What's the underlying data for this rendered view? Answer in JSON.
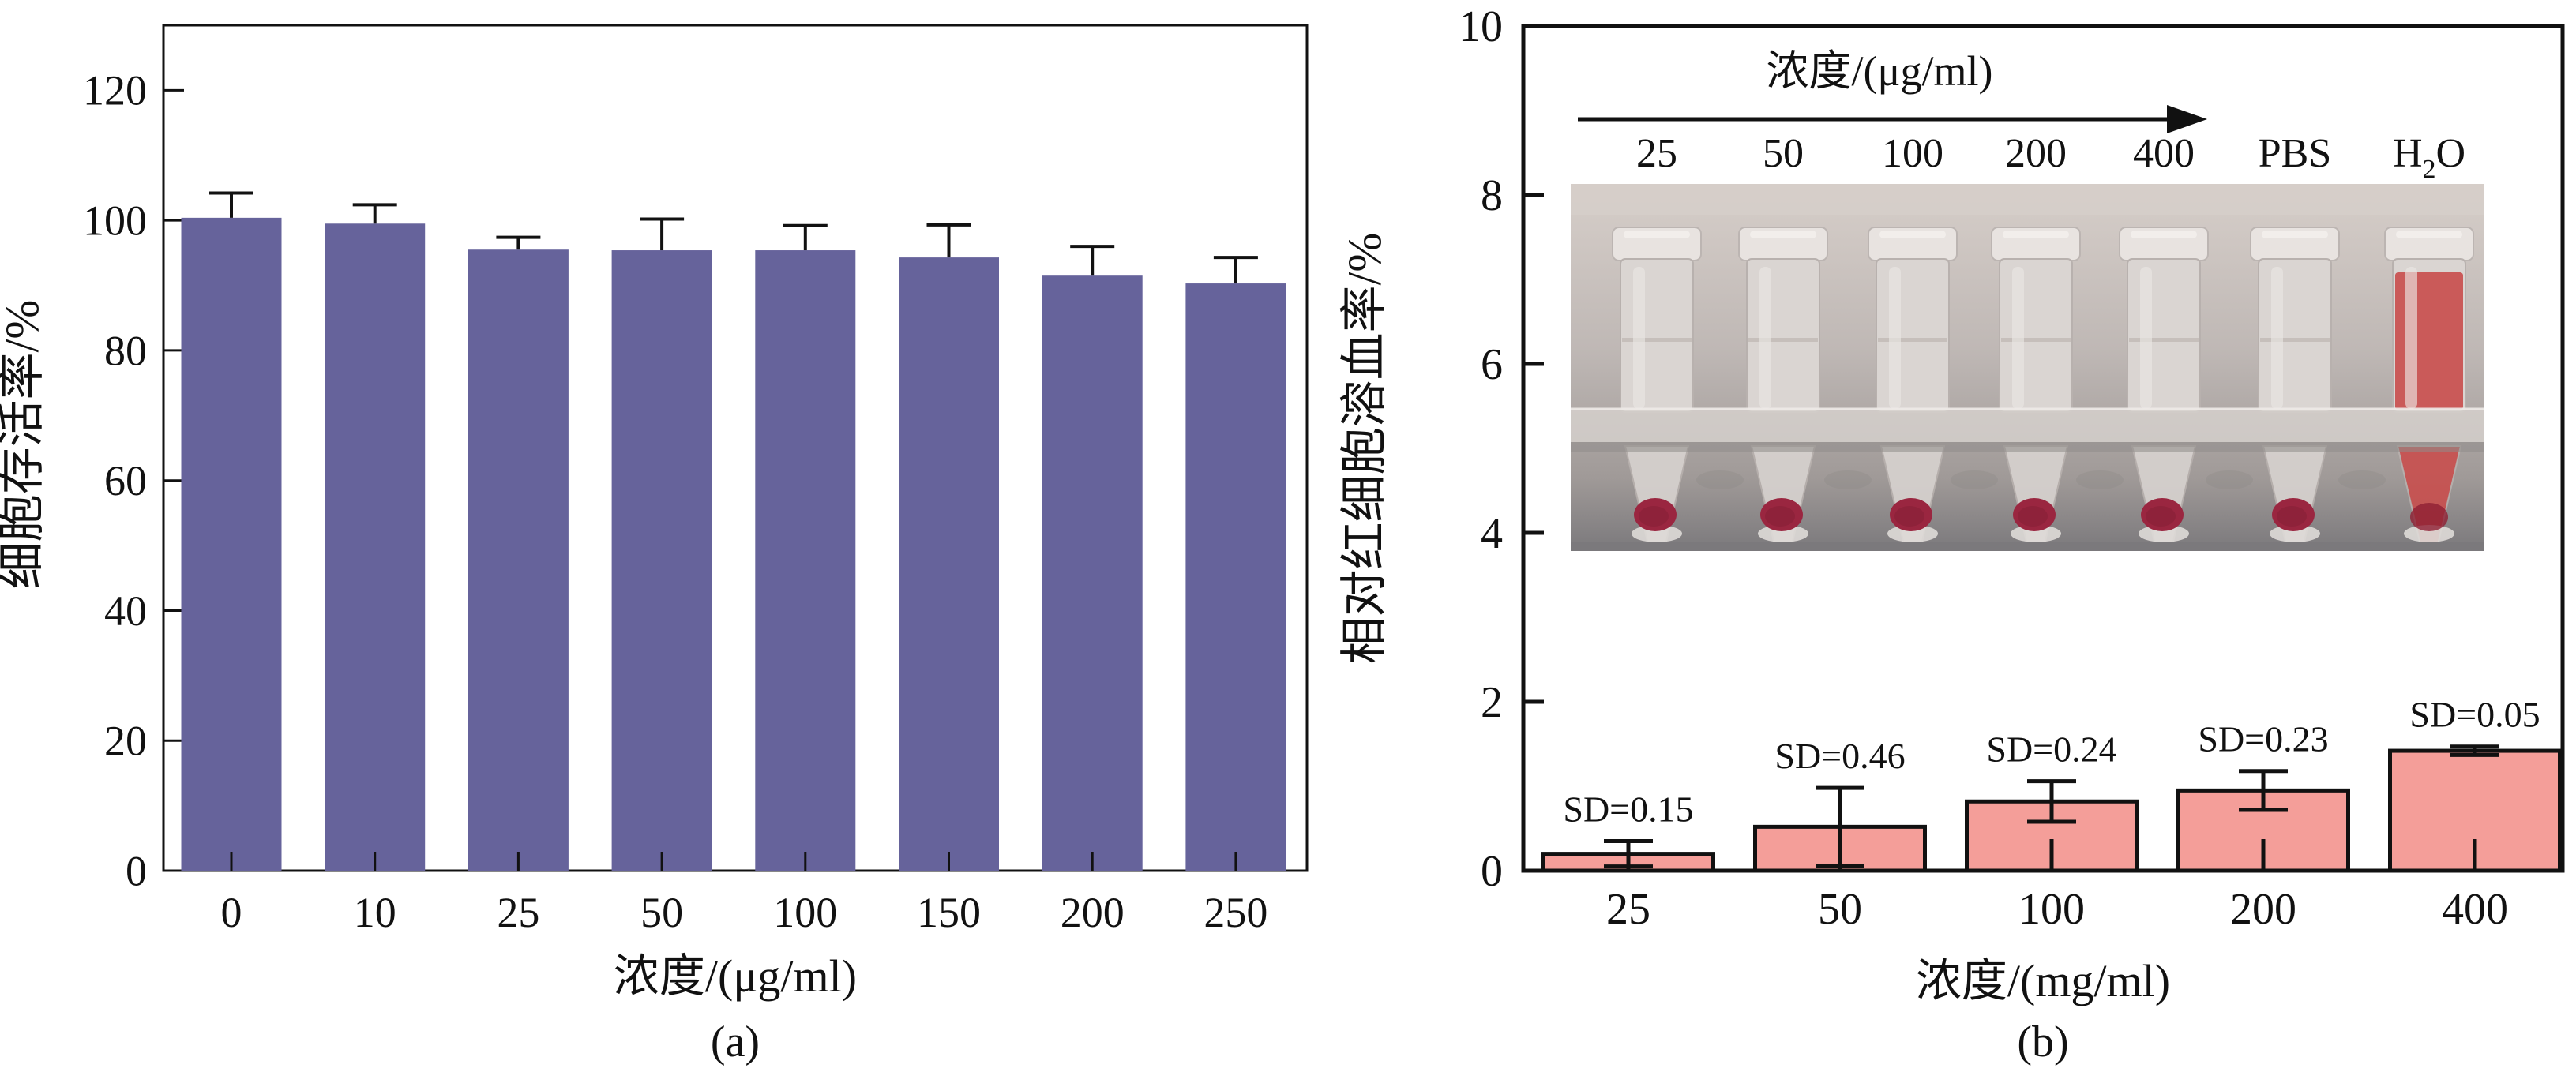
{
  "figure": {
    "background": "#ffffff",
    "panel_a_caption": "(a)",
    "panel_b_caption": "(b)"
  },
  "chart_data": [
    {
      "type": "bar",
      "title": "",
      "xlabel": "浓度/(μg/ml)",
      "ylabel": "细胞存活率/%",
      "categories": [
        "0",
        "10",
        "25",
        "50",
        "100",
        "150",
        "200",
        "250"
      ],
      "values": [
        100.4,
        99.5,
        95.5,
        95.4,
        95.4,
        94.3,
        91.5,
        90.3
      ],
      "errors": [
        3.8,
        2.9,
        1.9,
        4.8,
        3.8,
        5.0,
        4.5,
        4.0
      ],
      "error_style": "upper",
      "ylim": [
        0,
        130
      ],
      "yticks": [
        0,
        20,
        40,
        60,
        80,
        100,
        120
      ],
      "grid": false,
      "legend": "none",
      "bar_color": "#66639B",
      "bar_border": "none",
      "axis_color": "#111111",
      "caption": "(a)"
    },
    {
      "type": "bar",
      "title": "",
      "xlabel": "浓度/(mg/ml)",
      "ylabel": "相对红细胞溶血率/%",
      "categories": [
        "25",
        "50",
        "100",
        "200",
        "400"
      ],
      "values": [
        0.2,
        0.52,
        0.82,
        0.95,
        1.42
      ],
      "errors": [
        0.15,
        0.46,
        0.24,
        0.23,
        0.05
      ],
      "error_style": "both",
      "annotations": [
        "SD=0.15",
        "SD=0.46",
        "SD=0.24",
        "SD=0.23",
        "SD=0.05"
      ],
      "ylim": [
        0,
        10
      ],
      "yticks": [
        0,
        2,
        4,
        6,
        8,
        10
      ],
      "grid": false,
      "legend": "none",
      "bar_color": "#F49E99",
      "bar_border": "#111111",
      "axis_color": "#111111",
      "caption": "(b)",
      "inset": {
        "title": "浓度/(μg/ml)",
        "labels": [
          "25",
          "50",
          "100",
          "200",
          "400",
          "PBS",
          "H2O"
        ],
        "photo": "centrifuge-tubes-photo",
        "photo_colors": {
          "bg_top": "#d6cec9",
          "bg_mid": "#bfb8b5",
          "bg_low": "#a09a98",
          "bg_bottom": "#7b797c",
          "tube": "#dad5d2",
          "cap": "#e8e3e0",
          "rack": "#d9d4d0",
          "pellet": "#9a2640",
          "hemolysis_red": "#c94f4e"
        }
      }
    }
  ]
}
